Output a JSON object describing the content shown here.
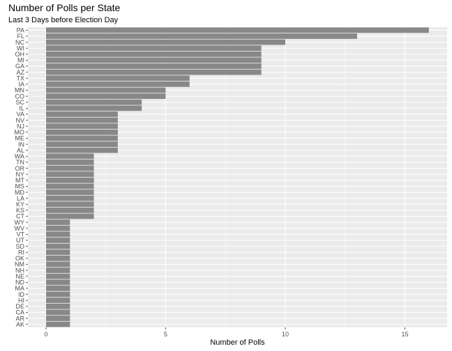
{
  "chart_data": {
    "type": "bar",
    "orientation": "horizontal",
    "title": "Number of Polls per State",
    "subtitle": "Last 3 Days before Election Day",
    "xlabel": "Number of Polls",
    "ylabel": "",
    "xlim": [
      0,
      16.8
    ],
    "xticks": [
      0,
      5,
      10,
      15
    ],
    "grid": true,
    "bar_color": "#888888",
    "panel_color": "#ebebeb",
    "grid_color": "#ffffff",
    "categories": [
      "PA",
      "FL",
      "NC",
      "WI",
      "OH",
      "MI",
      "GA",
      "AZ",
      "TX",
      "IA",
      "MN",
      "CO",
      "SC",
      "IL",
      "VA",
      "NV",
      "NJ",
      "MO",
      "ME",
      "IN",
      "AL",
      "WA",
      "TN",
      "OR",
      "NY",
      "MT",
      "MS",
      "MD",
      "LA",
      "KY",
      "KS",
      "CT",
      "WY",
      "WV",
      "VT",
      "UT",
      "SD",
      "RI",
      "OK",
      "NM",
      "NH",
      "NE",
      "ND",
      "MA",
      "ID",
      "HI",
      "DE",
      "CA",
      "AR",
      "AK"
    ],
    "values": [
      16,
      13,
      10,
      9,
      9,
      9,
      9,
      9,
      6,
      6,
      5,
      5,
      4,
      4,
      3,
      3,
      3,
      3,
      3,
      3,
      3,
      2,
      2,
      2,
      2,
      2,
      2,
      2,
      2,
      2,
      2,
      2,
      1,
      1,
      1,
      1,
      1,
      1,
      1,
      1,
      1,
      1,
      1,
      1,
      1,
      1,
      1,
      1,
      1,
      1
    ]
  }
}
